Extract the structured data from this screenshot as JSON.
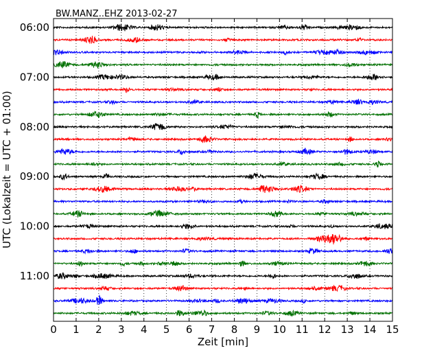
{
  "chart_data": {
    "type": "line",
    "title": "BW.MANZ..EHZ 2013-02-27",
    "xlabel": "Zeit  [min]",
    "ylabel": "UTC (Lokalzeit = UTC + 01:00)",
    "xlim": [
      0,
      15
    ],
    "x_ticks": [
      "0",
      "1",
      "2",
      "3",
      "4",
      "5",
      "6",
      "7",
      "8",
      "9",
      "10",
      "11",
      "12",
      "13",
      "14",
      "15"
    ],
    "y_tick_labels": [
      "06:00",
      "07:00",
      "08:00",
      "09:00",
      "10:00",
      "11:00"
    ],
    "grid": "vertical dotted",
    "series": [
      {
        "start": "06:00",
        "color": "#000000"
      },
      {
        "start": "06:15",
        "color": "#ff0000"
      },
      {
        "start": "06:30",
        "color": "#0000ff"
      },
      {
        "start": "06:45",
        "color": "#007000"
      },
      {
        "start": "07:00",
        "color": "#000000"
      },
      {
        "start": "07:15",
        "color": "#ff0000"
      },
      {
        "start": "07:30",
        "color": "#0000ff"
      },
      {
        "start": "07:45",
        "color": "#007000"
      },
      {
        "start": "08:00",
        "color": "#000000"
      },
      {
        "start": "08:15",
        "color": "#ff0000"
      },
      {
        "start": "08:30",
        "color": "#0000ff"
      },
      {
        "start": "08:45",
        "color": "#007000"
      },
      {
        "start": "09:00",
        "color": "#000000"
      },
      {
        "start": "09:15",
        "color": "#ff0000"
      },
      {
        "start": "09:30",
        "color": "#0000ff"
      },
      {
        "start": "09:45",
        "color": "#007000"
      },
      {
        "start": "10:00",
        "color": "#000000"
      },
      {
        "start": "10:15",
        "color": "#ff0000"
      },
      {
        "start": "10:30",
        "color": "#0000ff"
      },
      {
        "start": "10:45",
        "color": "#007000"
      },
      {
        "start": "11:00",
        "color": "#000000"
      },
      {
        "start": "11:15",
        "color": "#ff0000"
      },
      {
        "start": "11:30",
        "color": "#0000ff"
      },
      {
        "start": "11:45",
        "color": "#007000"
      }
    ]
  }
}
